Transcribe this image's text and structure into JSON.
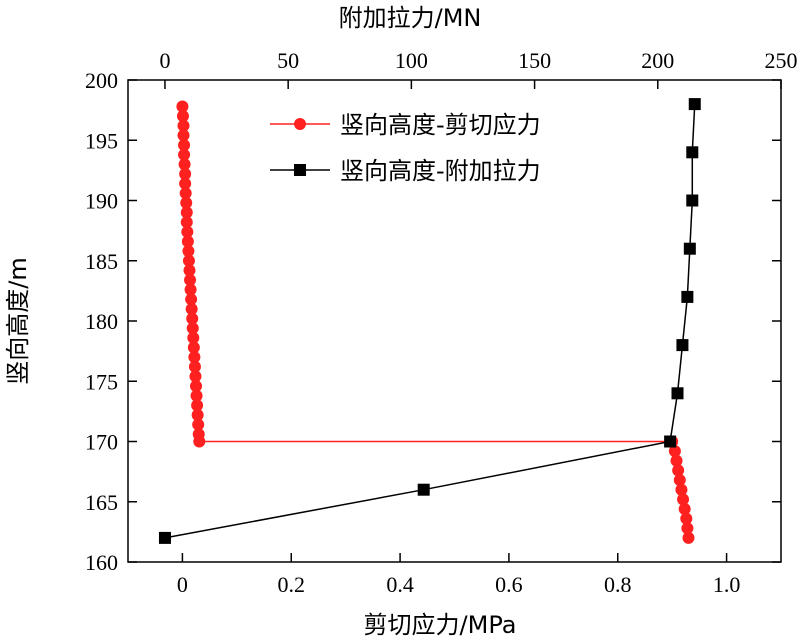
{
  "chart_data": {
    "type": "line",
    "xlabel_bottom": "剪切应力/MPa",
    "xlabel_top": "附加拉力/MN",
    "ylabel": "竖向高度/m",
    "x_bottom_lim": [
      -0.1,
      1.1
    ],
    "x_top_lim": [
      -15,
      250
    ],
    "ylim": [
      160,
      200
    ],
    "x_bottom_ticks": [
      "0",
      "0.2",
      "0.4",
      "0.6",
      "0.8",
      "1.0"
    ],
    "x_bottom_tick_values": [
      0,
      0.2,
      0.4,
      0.6,
      0.8,
      1.0
    ],
    "x_top_ticks": [
      "0",
      "50",
      "100",
      "150",
      "200",
      "250"
    ],
    "x_top_tick_values": [
      0,
      50,
      100,
      150,
      200,
      250
    ],
    "y_ticks": [
      "160",
      "165",
      "170",
      "175",
      "180",
      "185",
      "190",
      "195",
      "200"
    ],
    "y_tick_values": [
      160,
      165,
      170,
      175,
      180,
      185,
      190,
      195,
      200
    ],
    "legend_position": "top-right",
    "series": [
      {
        "name": "竖向高度-剪切应力",
        "axis": "bottom",
        "color": "#ff2020",
        "marker": "circle",
        "points": [
          [
            0.0,
            197.8
          ],
          [
            0.001,
            197.0
          ],
          [
            0.002,
            196.2
          ],
          [
            0.002,
            195.4
          ],
          [
            0.003,
            194.6
          ],
          [
            0.003,
            193.8
          ],
          [
            0.004,
            193.0
          ],
          [
            0.005,
            192.2
          ],
          [
            0.005,
            191.4
          ],
          [
            0.006,
            190.6
          ],
          [
            0.007,
            189.8
          ],
          [
            0.008,
            189.0
          ],
          [
            0.008,
            188.2
          ],
          [
            0.009,
            187.4
          ],
          [
            0.01,
            186.6
          ],
          [
            0.011,
            185.8
          ],
          [
            0.012,
            185.0
          ],
          [
            0.013,
            184.2
          ],
          [
            0.014,
            183.4
          ],
          [
            0.015,
            182.6
          ],
          [
            0.016,
            181.8
          ],
          [
            0.017,
            181.0
          ],
          [
            0.018,
            180.2
          ],
          [
            0.019,
            179.4
          ],
          [
            0.02,
            178.6
          ],
          [
            0.021,
            177.8
          ],
          [
            0.022,
            177.0
          ],
          [
            0.023,
            176.2
          ],
          [
            0.024,
            175.4
          ],
          [
            0.025,
            174.6
          ],
          [
            0.026,
            173.8
          ],
          [
            0.027,
            173.0
          ],
          [
            0.028,
            172.2
          ],
          [
            0.029,
            171.4
          ],
          [
            0.03,
            170.6
          ],
          [
            0.031,
            170.0
          ],
          [
            0.9,
            170.0
          ],
          [
            0.905,
            169.2
          ],
          [
            0.908,
            168.4
          ],
          [
            0.911,
            167.6
          ],
          [
            0.914,
            166.8
          ],
          [
            0.917,
            166.0
          ],
          [
            0.92,
            165.2
          ],
          [
            0.923,
            164.4
          ],
          [
            0.926,
            163.6
          ],
          [
            0.928,
            162.8
          ],
          [
            0.93,
            162.0
          ]
        ]
      },
      {
        "name": "竖向高度-附加拉力",
        "axis": "top",
        "color": "#000000",
        "marker": "square",
        "points": [
          [
            0,
            162
          ],
          [
            105,
            166
          ],
          [
            205,
            170
          ],
          [
            208,
            174
          ],
          [
            210,
            178
          ],
          [
            212,
            182
          ],
          [
            213,
            186
          ],
          [
            214,
            190
          ],
          [
            214,
            194
          ],
          [
            215,
            198
          ]
        ]
      }
    ]
  }
}
